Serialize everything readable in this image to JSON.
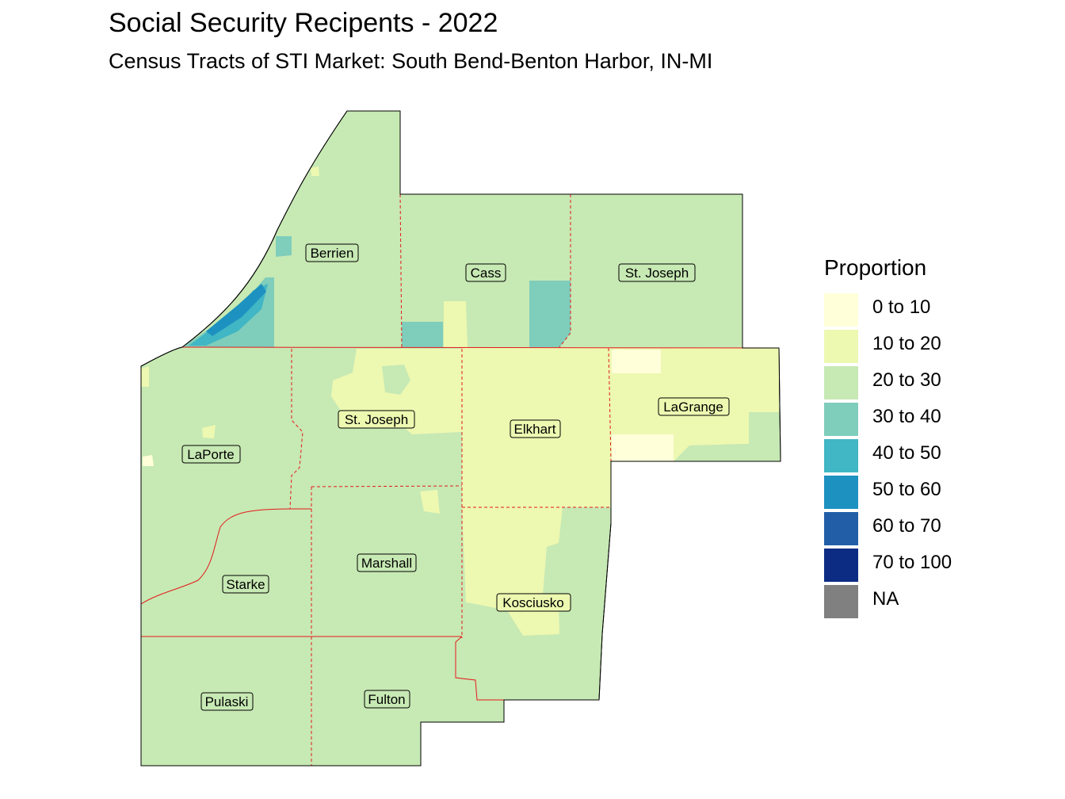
{
  "title": "Social Security Recipents - 2022",
  "subtitle": "Census Tracts of STI Market: South Bend-Benton Harbor, IN-MI",
  "legend": {
    "title": "Proportion",
    "items": [
      {
        "label": "0 to 10",
        "color": "#ffffd9"
      },
      {
        "label": "10 to 20",
        "color": "#edf8b1"
      },
      {
        "label": "20 to 30",
        "color": "#c7e9b4"
      },
      {
        "label": "30 to 40",
        "color": "#7fcdbb"
      },
      {
        "label": "40 to 50",
        "color": "#41b6c4"
      },
      {
        "label": "50 to 60",
        "color": "#1d91c0"
      },
      {
        "label": "60 to 70",
        "color": "#225ea8"
      },
      {
        "label": "70 to 100",
        "color": "#0c2c84"
      },
      {
        "label": "NA",
        "color": "#808080"
      }
    ]
  },
  "counties": {
    "berrien": "Berrien",
    "cass": "Cass",
    "stjoseph_mi": "St. Joseph",
    "laporte": "LaPorte",
    "stjoseph_in": "St. Joseph",
    "elkhart": "Elkhart",
    "lagrange": "LaGrange",
    "starke": "Starke",
    "marshall": "Marshall",
    "kosciusko": "Kosciusko",
    "pulaski": "Pulaski",
    "fulton": "Fulton"
  },
  "boundary_color": "#e41a1c"
}
